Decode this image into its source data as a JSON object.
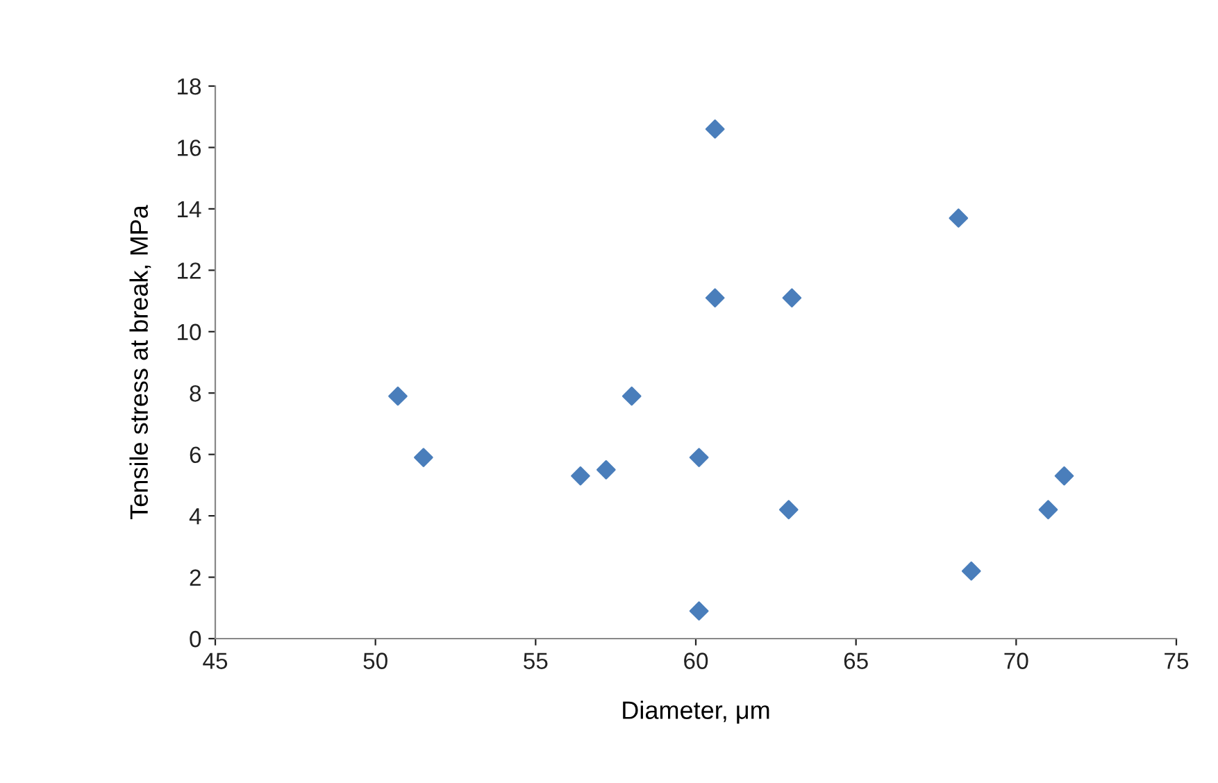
{
  "chart_data": {
    "type": "scatter",
    "xlabel": "Diameter, μm",
    "ylabel": "Tensile stress at break, MPa",
    "x": [
      50.7,
      51.5,
      56.4,
      57.2,
      58.0,
      60.1,
      60.1,
      60.6,
      60.6,
      63.0,
      62.9,
      68.2,
      68.6,
      71.0,
      71.5
    ],
    "series": [
      {
        "color": "#4a7ebb",
        "values": [
          7.9,
          5.9,
          5.3,
          5.5,
          7.9,
          5.9,
          0.9,
          16.6,
          11.1,
          11.1,
          4.2,
          13.7,
          2.2,
          4.2,
          5.3
        ]
      }
    ],
    "xlim": [
      45,
      75
    ],
    "xticks": [
      45,
      50,
      55,
      60,
      65,
      70,
      75
    ],
    "ylim": [
      0,
      18
    ],
    "yticks": [
      0,
      2,
      4,
      6,
      8,
      10,
      12,
      14,
      16,
      18
    ],
    "marker": "diamond",
    "grid": false,
    "legend": false
  }
}
